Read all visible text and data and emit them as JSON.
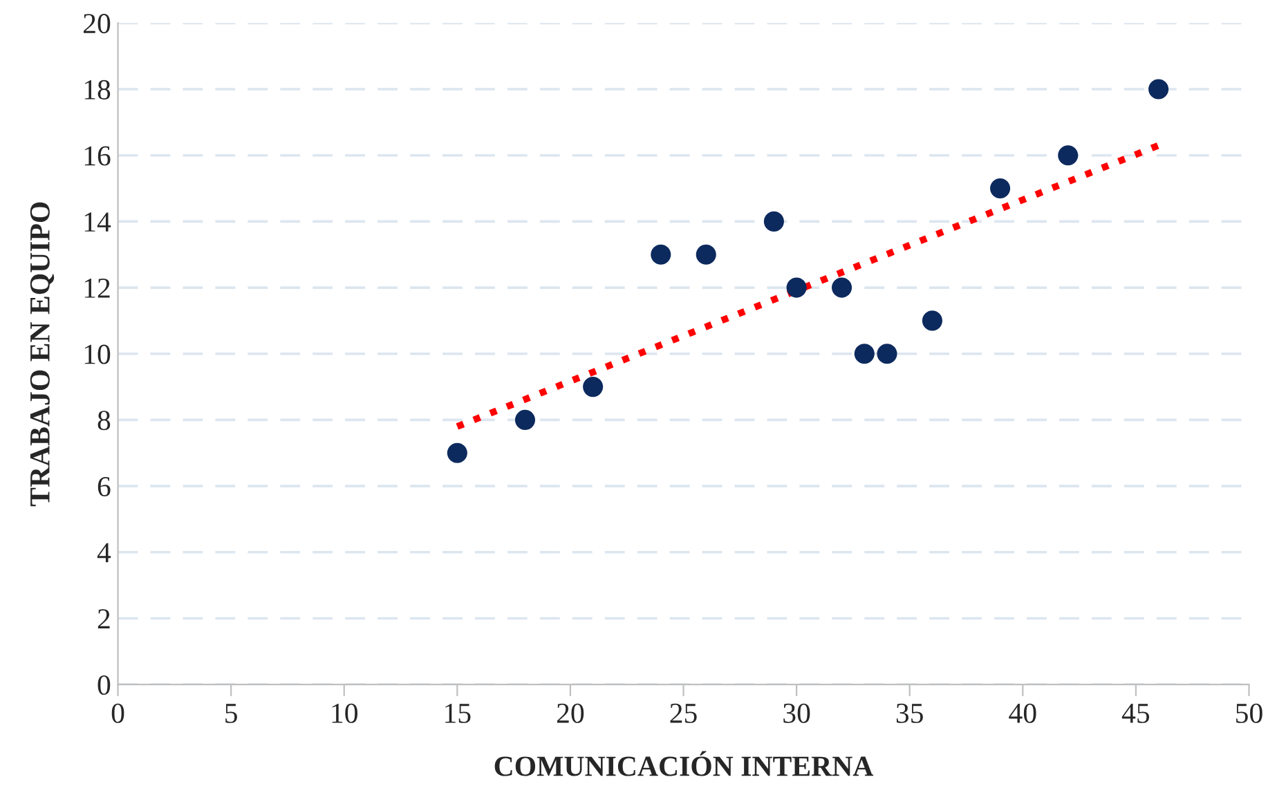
{
  "chart_data": {
    "type": "scatter",
    "xlabel": "COMUNICACIÓN INTERNA",
    "ylabel": "TRABAJO EN EQUIPO",
    "xlim": [
      0,
      50
    ],
    "xticks": [
      0,
      5,
      10,
      15,
      20,
      25,
      30,
      35,
      40,
      45,
      50
    ],
    "ylim": [
      0,
      20
    ],
    "yticks": [
      0,
      2,
      4,
      6,
      8,
      10,
      12,
      14,
      16,
      18,
      20
    ],
    "grid": "y",
    "series": [
      {
        "marker": "circle",
        "color": "#0d2a5e",
        "x": [
          15,
          18,
          21,
          24,
          26,
          29,
          30,
          32,
          33,
          34,
          36,
          39,
          42,
          46
        ],
        "values": [
          7,
          8,
          9,
          13,
          13,
          14,
          12,
          12,
          10,
          10,
          11,
          15,
          16,
          18
        ]
      },
      {
        "type": "line",
        "marker": "none",
        "color": "#ff0000",
        "line_style": "dotted",
        "x": [
          15,
          46
        ],
        "values": [
          7.8,
          16.3
        ]
      }
    ]
  }
}
